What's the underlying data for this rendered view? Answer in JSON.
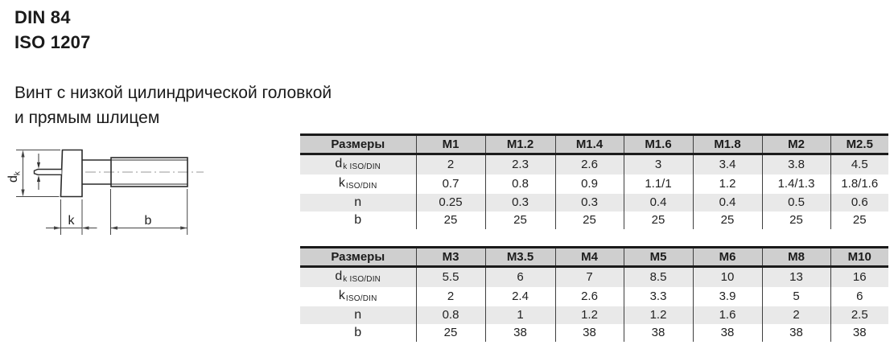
{
  "header": {
    "title_line1": "DIN 84",
    "title_line2": "ISO 1207",
    "subtitle_line1": "Винт с низкой цилиндрической головкой",
    "subtitle_line2": "и прямым шлицем"
  },
  "drawing": {
    "dk_main": "d",
    "dk_sub": "k",
    "k_label": "k",
    "b_label": "b"
  },
  "tables": [
    {
      "header": [
        "Размеры",
        "M1",
        "M1.2",
        "M1.4",
        "M1.6",
        "M1.8",
        "M2",
        "M2.5"
      ],
      "rows": [
        {
          "label_main": "d",
          "label_sub": "k ISO/DIN",
          "values": [
            "2",
            "2.3",
            "2.6",
            "3",
            "3.4",
            "3.8",
            "4.5"
          ]
        },
        {
          "label_main": "k",
          "label_sub": "ISO/DIN",
          "values": [
            "0.7",
            "0.8",
            "0.9",
            "1.1/1",
            "1.2",
            "1.4/1.3",
            "1.8/1.6"
          ]
        },
        {
          "label_main": "n",
          "label_sub": "",
          "values": [
            "0.25",
            "0.3",
            "0.3",
            "0.4",
            "0.4",
            "0.5",
            "0.6"
          ]
        },
        {
          "label_main": "b",
          "label_sub": "",
          "values": [
            "25",
            "25",
            "25",
            "25",
            "25",
            "25",
            "25"
          ]
        }
      ]
    },
    {
      "header": [
        "Размеры",
        "M3",
        "M3.5",
        "M4",
        "M5",
        "M6",
        "M8",
        "M10"
      ],
      "rows": [
        {
          "label_main": "d",
          "label_sub": "k ISO/DIN",
          "values": [
            "5.5",
            "6",
            "7",
            "8.5",
            "10",
            "13",
            "16"
          ]
        },
        {
          "label_main": "k",
          "label_sub": "ISO/DIN",
          "values": [
            "2",
            "2.4",
            "2.6",
            "3.3",
            "3.9",
            "5",
            "6"
          ]
        },
        {
          "label_main": "n",
          "label_sub": "",
          "values": [
            "0.8",
            "1",
            "1.2",
            "1.2",
            "1.6",
            "2",
            "2.5"
          ]
        },
        {
          "label_main": "b",
          "label_sub": "",
          "values": [
            "25",
            "38",
            "38",
            "38",
            "38",
            "38",
            "38"
          ]
        }
      ]
    }
  ],
  "colors": {
    "ink": "#1b1b1b",
    "header_bg": "#cfcfcf",
    "stripe_bg": "#e9e9e9",
    "grid_line": "#3f3f3f"
  }
}
